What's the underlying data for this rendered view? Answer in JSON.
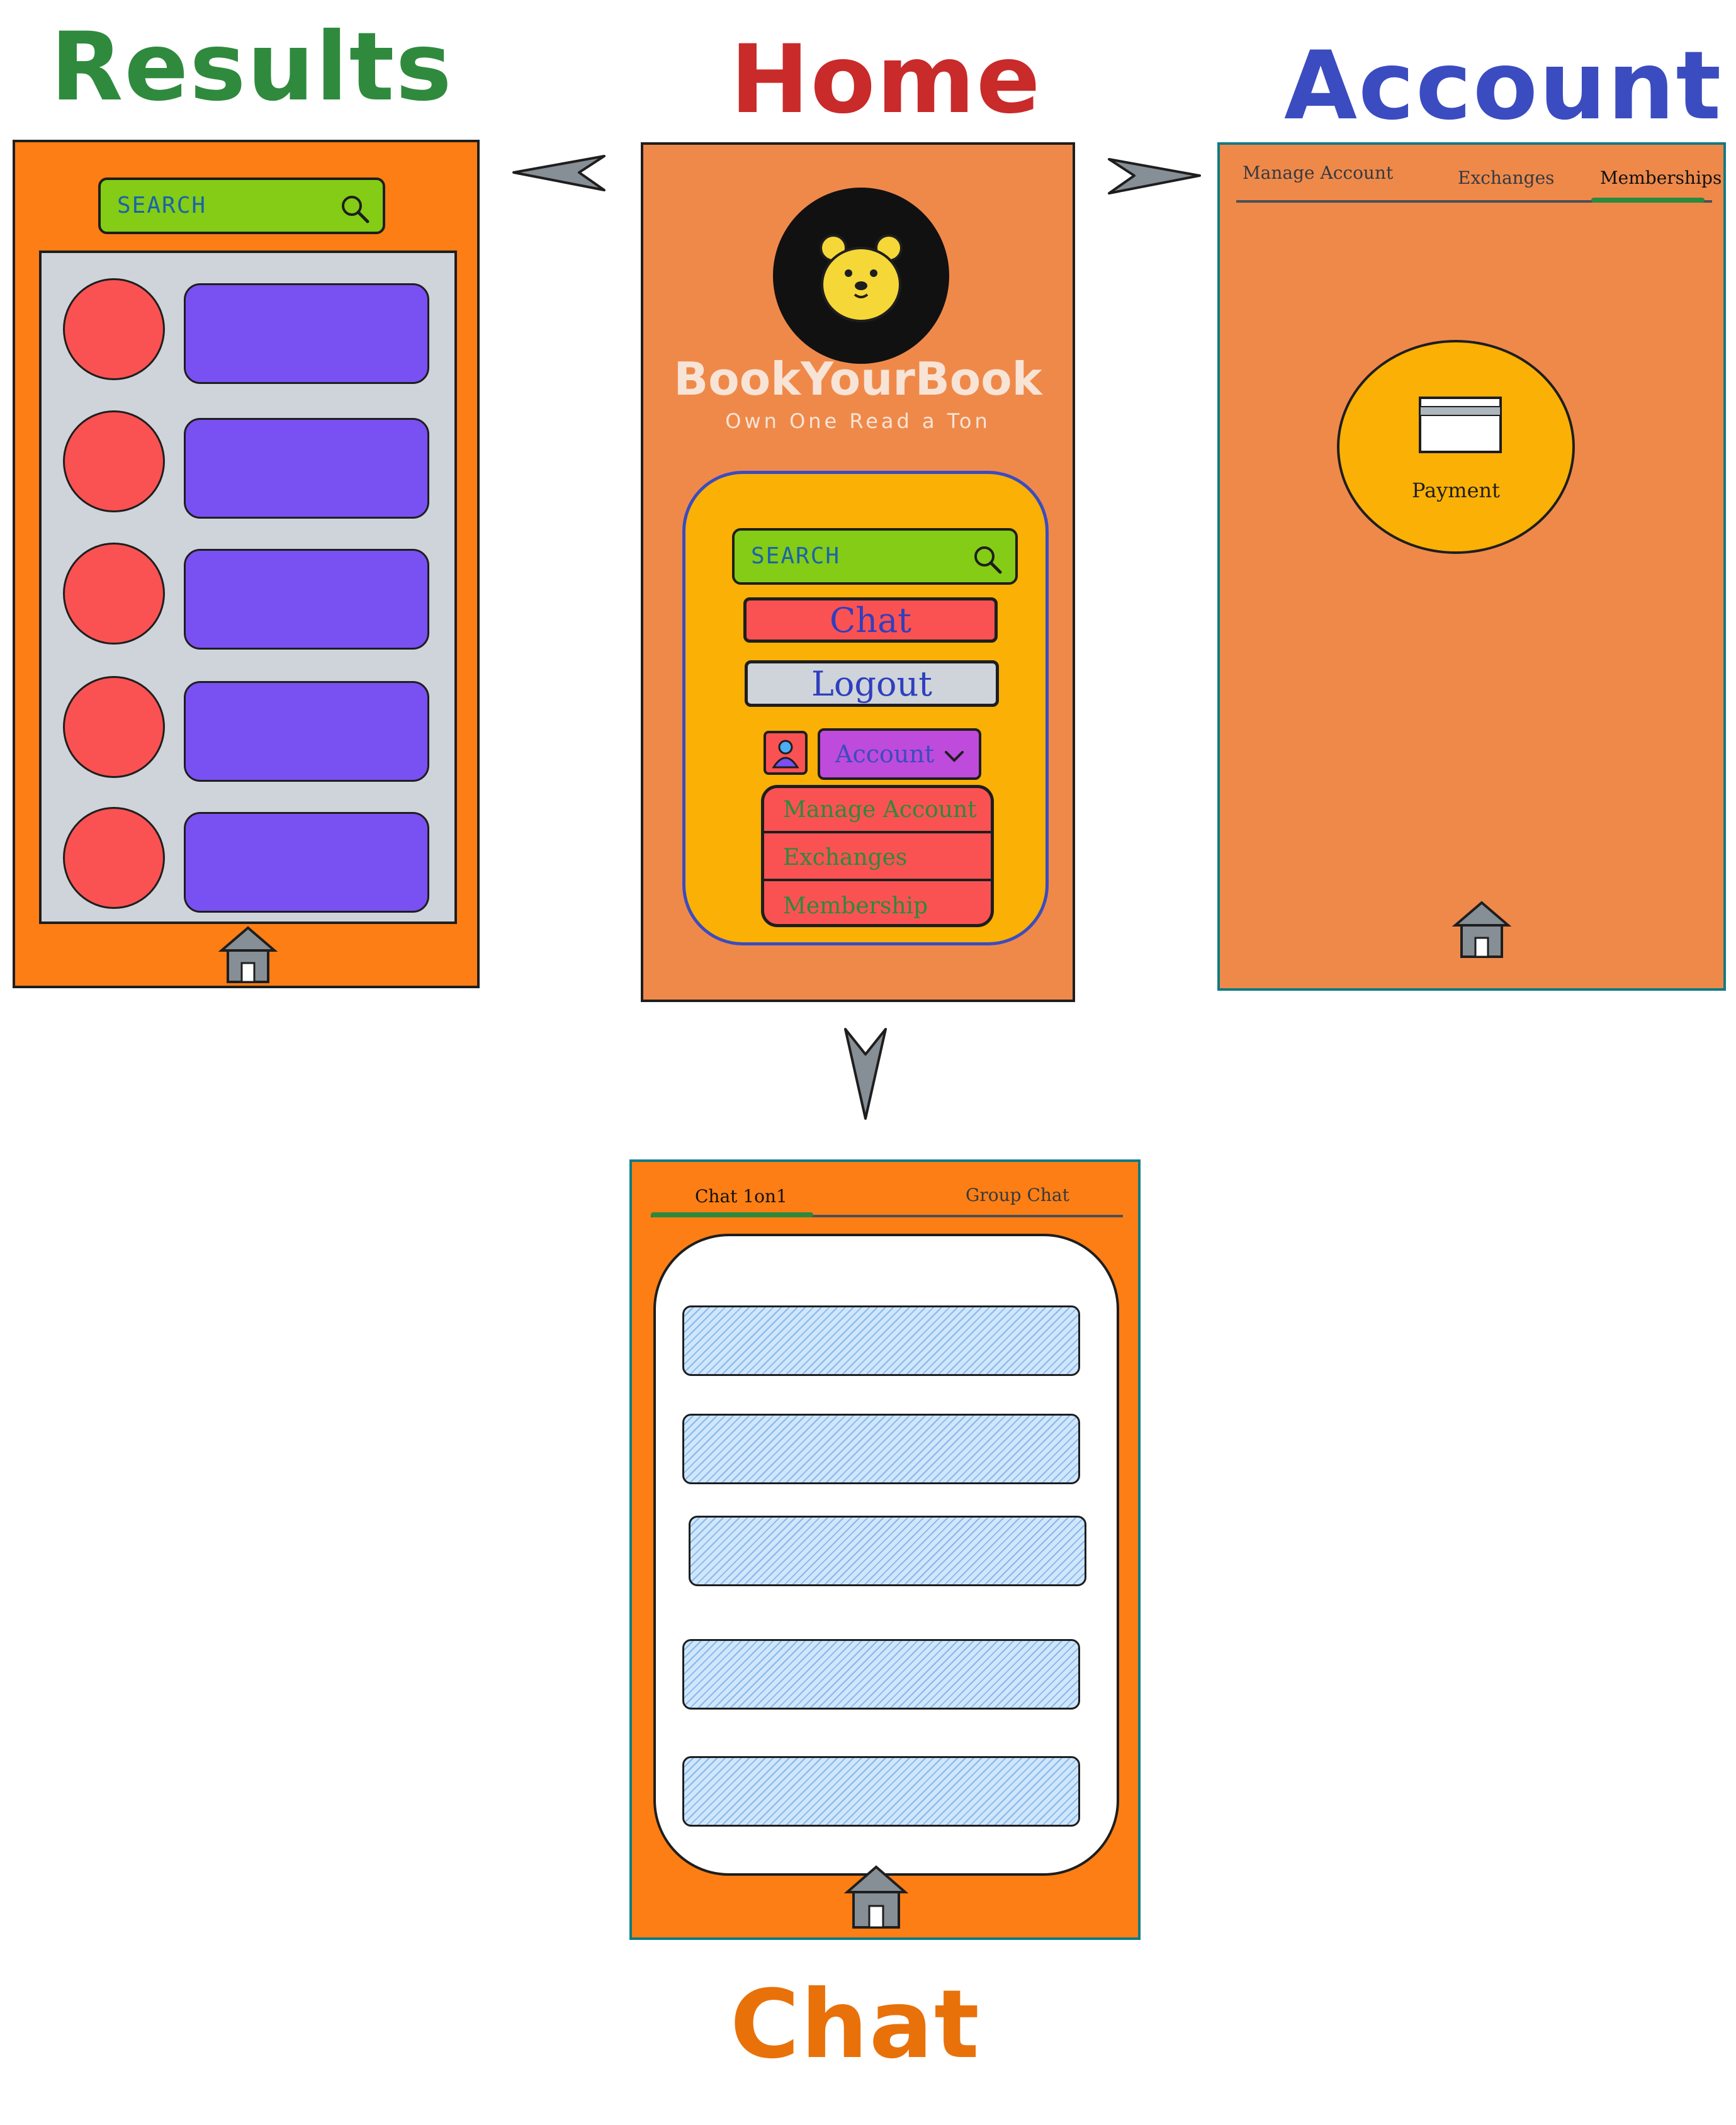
{
  "labels": {
    "results": "Results",
    "home": "Home",
    "account": "Account",
    "chat": "Chat"
  },
  "colors": {
    "results_label": "#2f8a3e",
    "home_label": "#c92a2a",
    "account_label": "#3b4cc0",
    "chat_label": "#e8710a",
    "screen_orange": "#fd7e14",
    "home_orange": "#ef894a",
    "panel_yellow": "#fab005",
    "search_green": "#84cc16",
    "button_red": "#fa5252",
    "button_gray": "#ced4da",
    "account_purple": "#be4bdb",
    "card_purple": "#7950f2",
    "tab_underline": "#2b8a3e"
  },
  "results_screen": {
    "search_placeholder": "SEARCH",
    "items": [
      {
        "avatar": "red-circle",
        "card": "purple-card"
      },
      {
        "avatar": "red-circle",
        "card": "purple-card"
      },
      {
        "avatar": "red-circle",
        "card": "purple-card"
      },
      {
        "avatar": "red-circle",
        "card": "purple-card"
      },
      {
        "avatar": "red-circle",
        "card": "purple-card"
      }
    ],
    "home_icon": "house-icon"
  },
  "home_screen": {
    "logo_icon": "bear-icon",
    "app_name": "BookYourBook",
    "tagline": "Own One Read a Ton",
    "search_placeholder": "SEARCH",
    "chat_button": "Chat",
    "logout_button": "Logout",
    "account_dropdown": "Account",
    "dropdown_items": [
      "Manage Account",
      "Exchanges",
      "Membership"
    ]
  },
  "account_screen": {
    "tabs": [
      "Manage Account",
      "Exchanges",
      "Memberships"
    ],
    "active_tab": "Memberships",
    "payment_label": "Payment",
    "home_icon": "house-icon"
  },
  "chat_screen": {
    "tabs": [
      "Chat 1on1",
      "Group Chat"
    ],
    "active_tab": "Chat 1on1",
    "message_count": 5,
    "home_icon": "house-icon"
  }
}
